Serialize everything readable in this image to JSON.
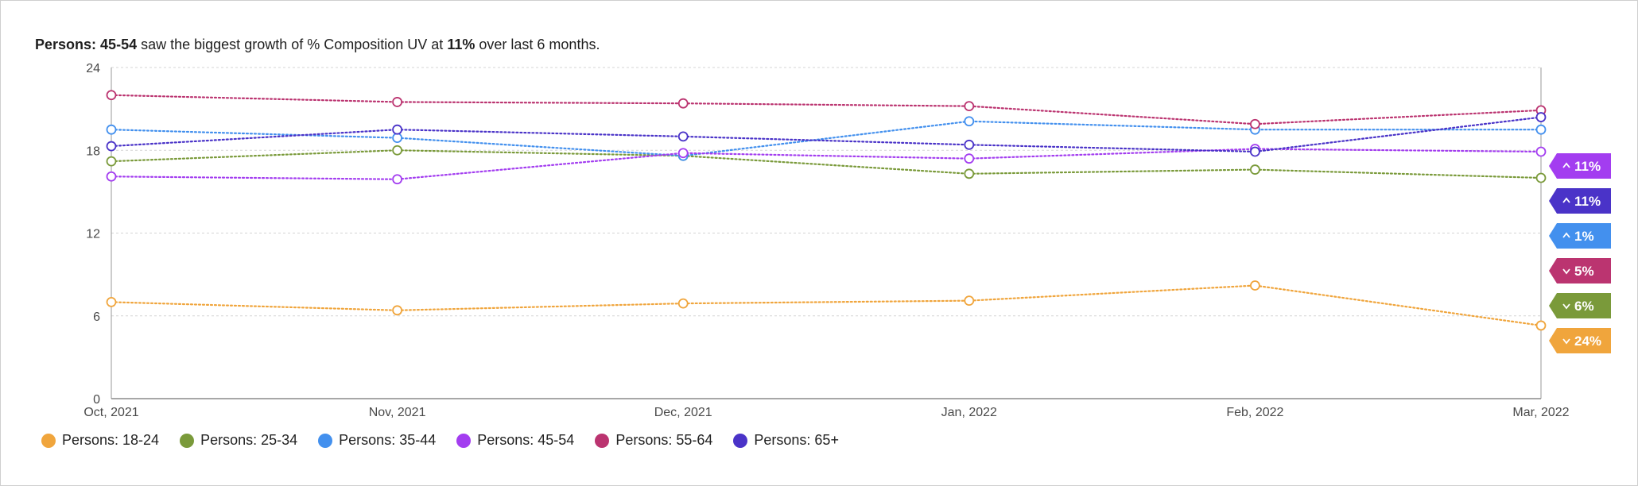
{
  "headline": {
    "lead": "Persons:",
    "highlight": "45-54",
    "middle": "saw the biggest growth of % Composition UV at",
    "value": "11%",
    "tail": "over last 6 months."
  },
  "chart_data": {
    "type": "line",
    "categories": [
      "Oct, 2021",
      "Nov, 2021",
      "Dec, 2021",
      "Jan, 2022",
      "Feb, 2022",
      "Mar, 2022"
    ],
    "ylim": [
      0,
      24
    ],
    "yticks": [
      0,
      6,
      12,
      18,
      24
    ],
    "grid": true,
    "legend_placement": "bottom-left",
    "series": [
      {
        "name": "Persons: 18-24",
        "color": "#f0a53c",
        "values": [
          7.0,
          6.4,
          6.9,
          7.1,
          8.2,
          5.3
        ],
        "change": "24%",
        "direction": "down"
      },
      {
        "name": "Persons: 25-34",
        "color": "#7a9a3a",
        "values": [
          17.2,
          18.0,
          17.6,
          16.3,
          16.6,
          16.0
        ],
        "change": "6%",
        "direction": "down"
      },
      {
        "name": "Persons: 35-44",
        "color": "#4390ee",
        "values": [
          19.5,
          18.9,
          17.6,
          20.1,
          19.5,
          19.5
        ],
        "change": "1%",
        "direction": "up"
      },
      {
        "name": "Persons: 45-54",
        "color": "#a33df0",
        "values": [
          16.1,
          15.9,
          17.8,
          17.4,
          18.1,
          17.9
        ],
        "change": "11%",
        "direction": "up"
      },
      {
        "name": "Persons: 55-64",
        "color": "#bb3470",
        "values": [
          22.0,
          21.5,
          21.4,
          21.2,
          19.9,
          20.9
        ],
        "change": "5%",
        "direction": "down"
      },
      {
        "name": "Persons: 65+",
        "color": "#4a33c8",
        "values": [
          18.3,
          19.5,
          19.0,
          18.4,
          17.9,
          20.4
        ],
        "change": "11%",
        "direction": "up"
      }
    ],
    "badge_order": [
      3,
      5,
      2,
      4,
      1,
      0
    ]
  }
}
